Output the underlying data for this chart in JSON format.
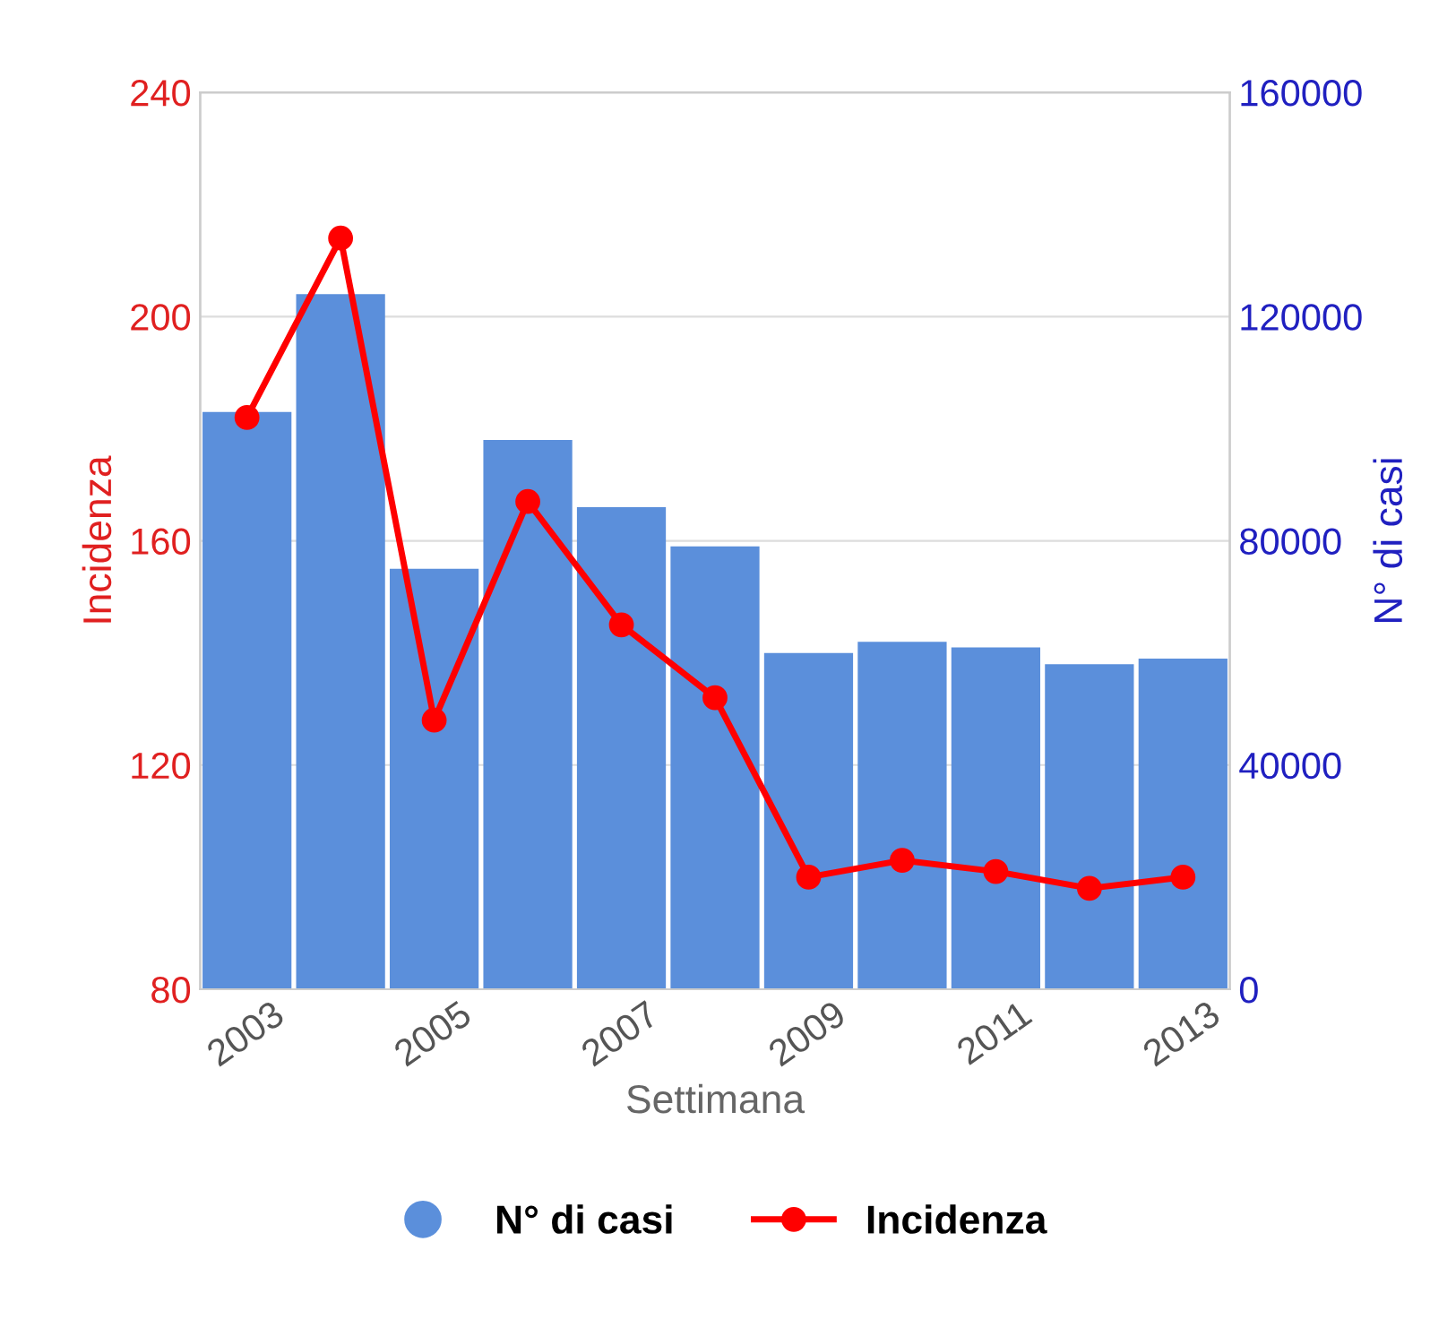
{
  "chart_data": {
    "type": "bar",
    "categories": [
      "2003",
      null,
      "2005",
      null,
      "2007",
      null,
      "2009",
      null,
      "2011",
      null,
      "2013"
    ],
    "xlabel": "Settimana",
    "ylabel": "Incidenza",
    "y2label": "N° di casi",
    "ylim": [
      80,
      240
    ],
    "yticks": [
      80,
      120,
      160,
      200,
      240
    ],
    "y2lim": [
      0,
      160000
    ],
    "y2ticks": [
      0,
      40000,
      80000,
      120000,
      160000
    ],
    "grid": "y",
    "legend": "bottom",
    "series": [
      {
        "name": "N° di casi",
        "axis": "y2",
        "color": "#5b8fdb",
        "values": [
          103000,
          124000,
          75000,
          98000,
          86000,
          79000,
          60000,
          62000,
          61000,
          58000,
          59000
        ]
      },
      {
        "name": "Incidenza",
        "type": "line",
        "axis": "y",
        "color": "#ff0000",
        "marker": "circle",
        "line_style": "solid",
        "values": [
          182,
          214,
          128,
          167,
          145,
          132,
          100,
          103,
          101,
          98,
          100
        ]
      }
    ]
  }
}
